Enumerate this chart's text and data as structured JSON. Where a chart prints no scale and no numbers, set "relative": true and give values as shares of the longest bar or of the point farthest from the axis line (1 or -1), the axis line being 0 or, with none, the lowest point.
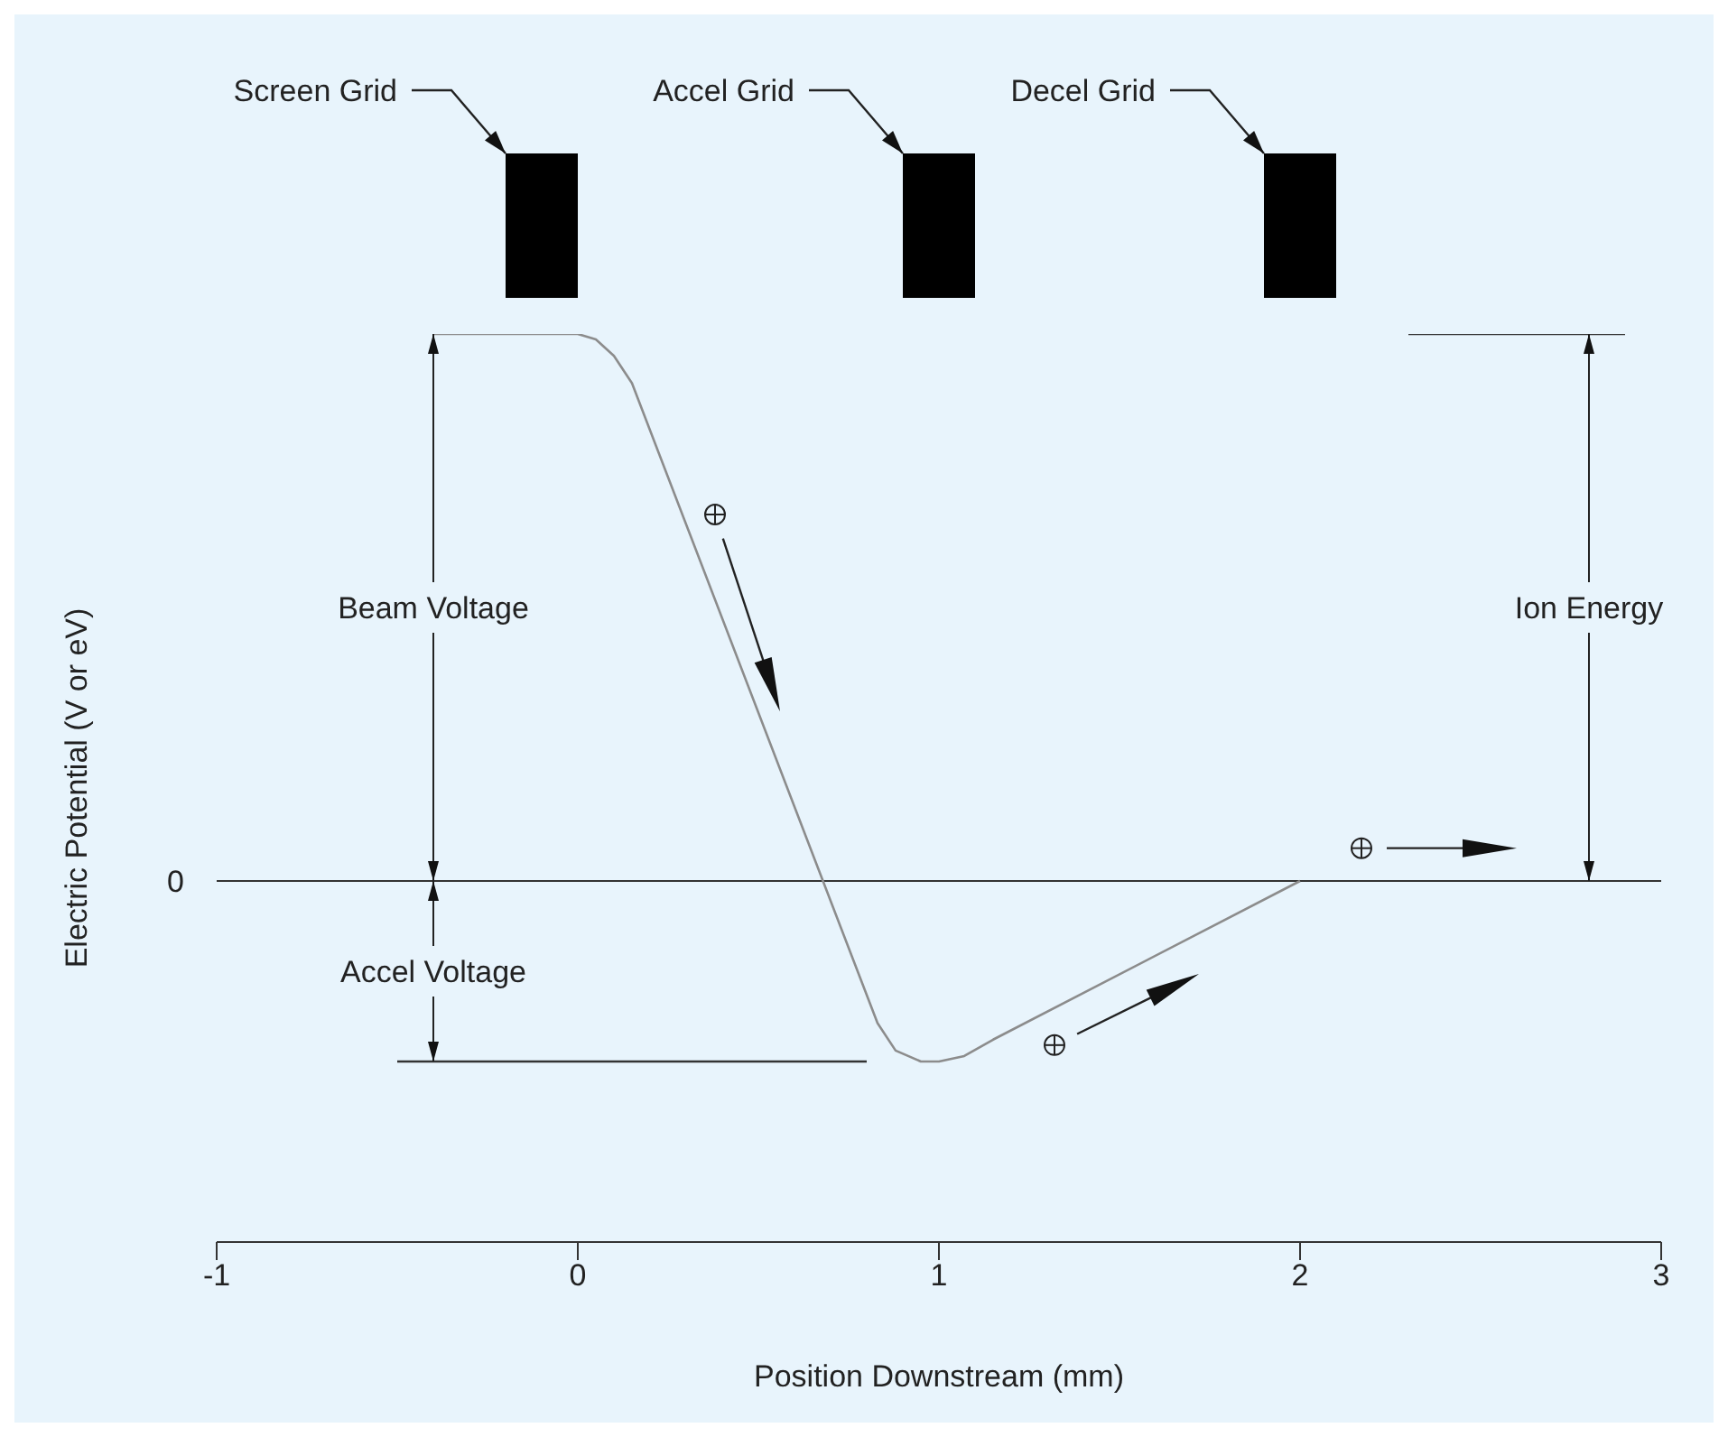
{
  "chart_data": {
    "type": "line",
    "relative": true,
    "xlabel": "Position Downstream (mm)",
    "ylabel": "Electric Potential (V or eV)",
    "xlim": [
      -1,
      3
    ],
    "xticks": [
      -1,
      0,
      1,
      2,
      3
    ],
    "marker": "none",
    "series": [
      {
        "color": "#8c8c8c",
        "x": [
          -0.4,
          0,
          0.05,
          0.1,
          0.15,
          0.83,
          0.88,
          0.95,
          1.0,
          1.07,
          1.15,
          2.0
        ],
        "values": [
          1,
          1,
          0.99,
          0.96,
          0.91,
          -0.26,
          -0.31,
          -0.33,
          -0.33,
          -0.32,
          -0.29,
          0
        ]
      },
      {
        "color": "#333333",
        "x": [
          -0.5,
          0.8
        ],
        "values": [
          -0.33,
          -0.33
        ]
      },
      {
        "color": "#333333",
        "x": [
          2.3,
          2.9
        ],
        "values": [
          1,
          1
        ]
      }
    ],
    "ref_lines": [
      {
        "axis": "y",
        "value": 0,
        "label": "0",
        "color": "#333333"
      }
    ],
    "annotations": [
      "Screen Grid",
      "Accel Grid",
      "Decel Grid",
      "Beam Voltage",
      "Accel Voltage",
      "Ion Energy"
    ]
  }
}
